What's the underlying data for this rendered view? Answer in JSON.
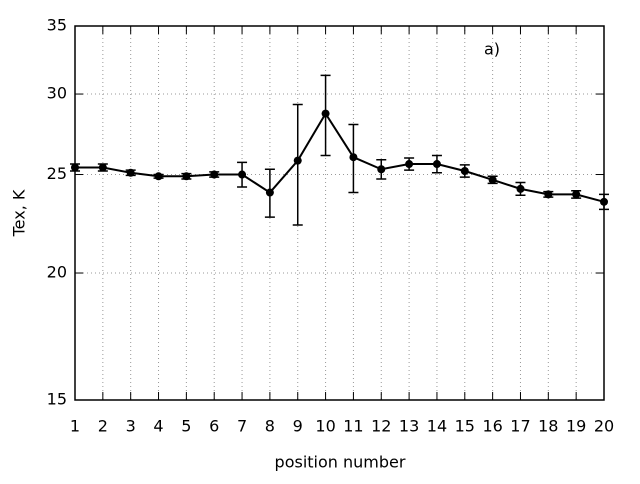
{
  "chart_data": {
    "type": "line",
    "xlabel": "position number",
    "ylabel": "Tex, K",
    "annotation": "a)",
    "x": [
      1,
      2,
      3,
      4,
      5,
      6,
      7,
      8,
      9,
      10,
      11,
      12,
      13,
      14,
      15,
      16,
      17,
      18,
      19,
      20
    ],
    "series": [
      {
        "color": "#000000",
        "values": [
          25.4,
          25.4,
          25.1,
          24.9,
          24.9,
          25.0,
          25.0,
          24.0,
          25.8,
          28.7,
          26.0,
          25.3,
          25.6,
          25.6,
          25.2,
          24.7,
          24.2,
          23.9,
          23.9,
          23.5
        ],
        "errors": [
          0.2,
          0.2,
          0.15,
          0.1,
          0.15,
          0.15,
          0.7,
          1.3,
          3.5,
          2.6,
          2.0,
          0.55,
          0.35,
          0.5,
          0.35,
          0.2,
          0.35,
          0.15,
          0.2,
          0.4
        ]
      }
    ],
    "xlim": [
      1,
      20
    ],
    "xticks": [
      1,
      2,
      3,
      4,
      5,
      6,
      7,
      8,
      9,
      10,
      11,
      12,
      13,
      14,
      15,
      16,
      17,
      18,
      19,
      20
    ],
    "ylim": [
      15,
      35
    ],
    "yticks": [
      15,
      20,
      25,
      30,
      35
    ],
    "ylog": true,
    "grid": true
  }
}
